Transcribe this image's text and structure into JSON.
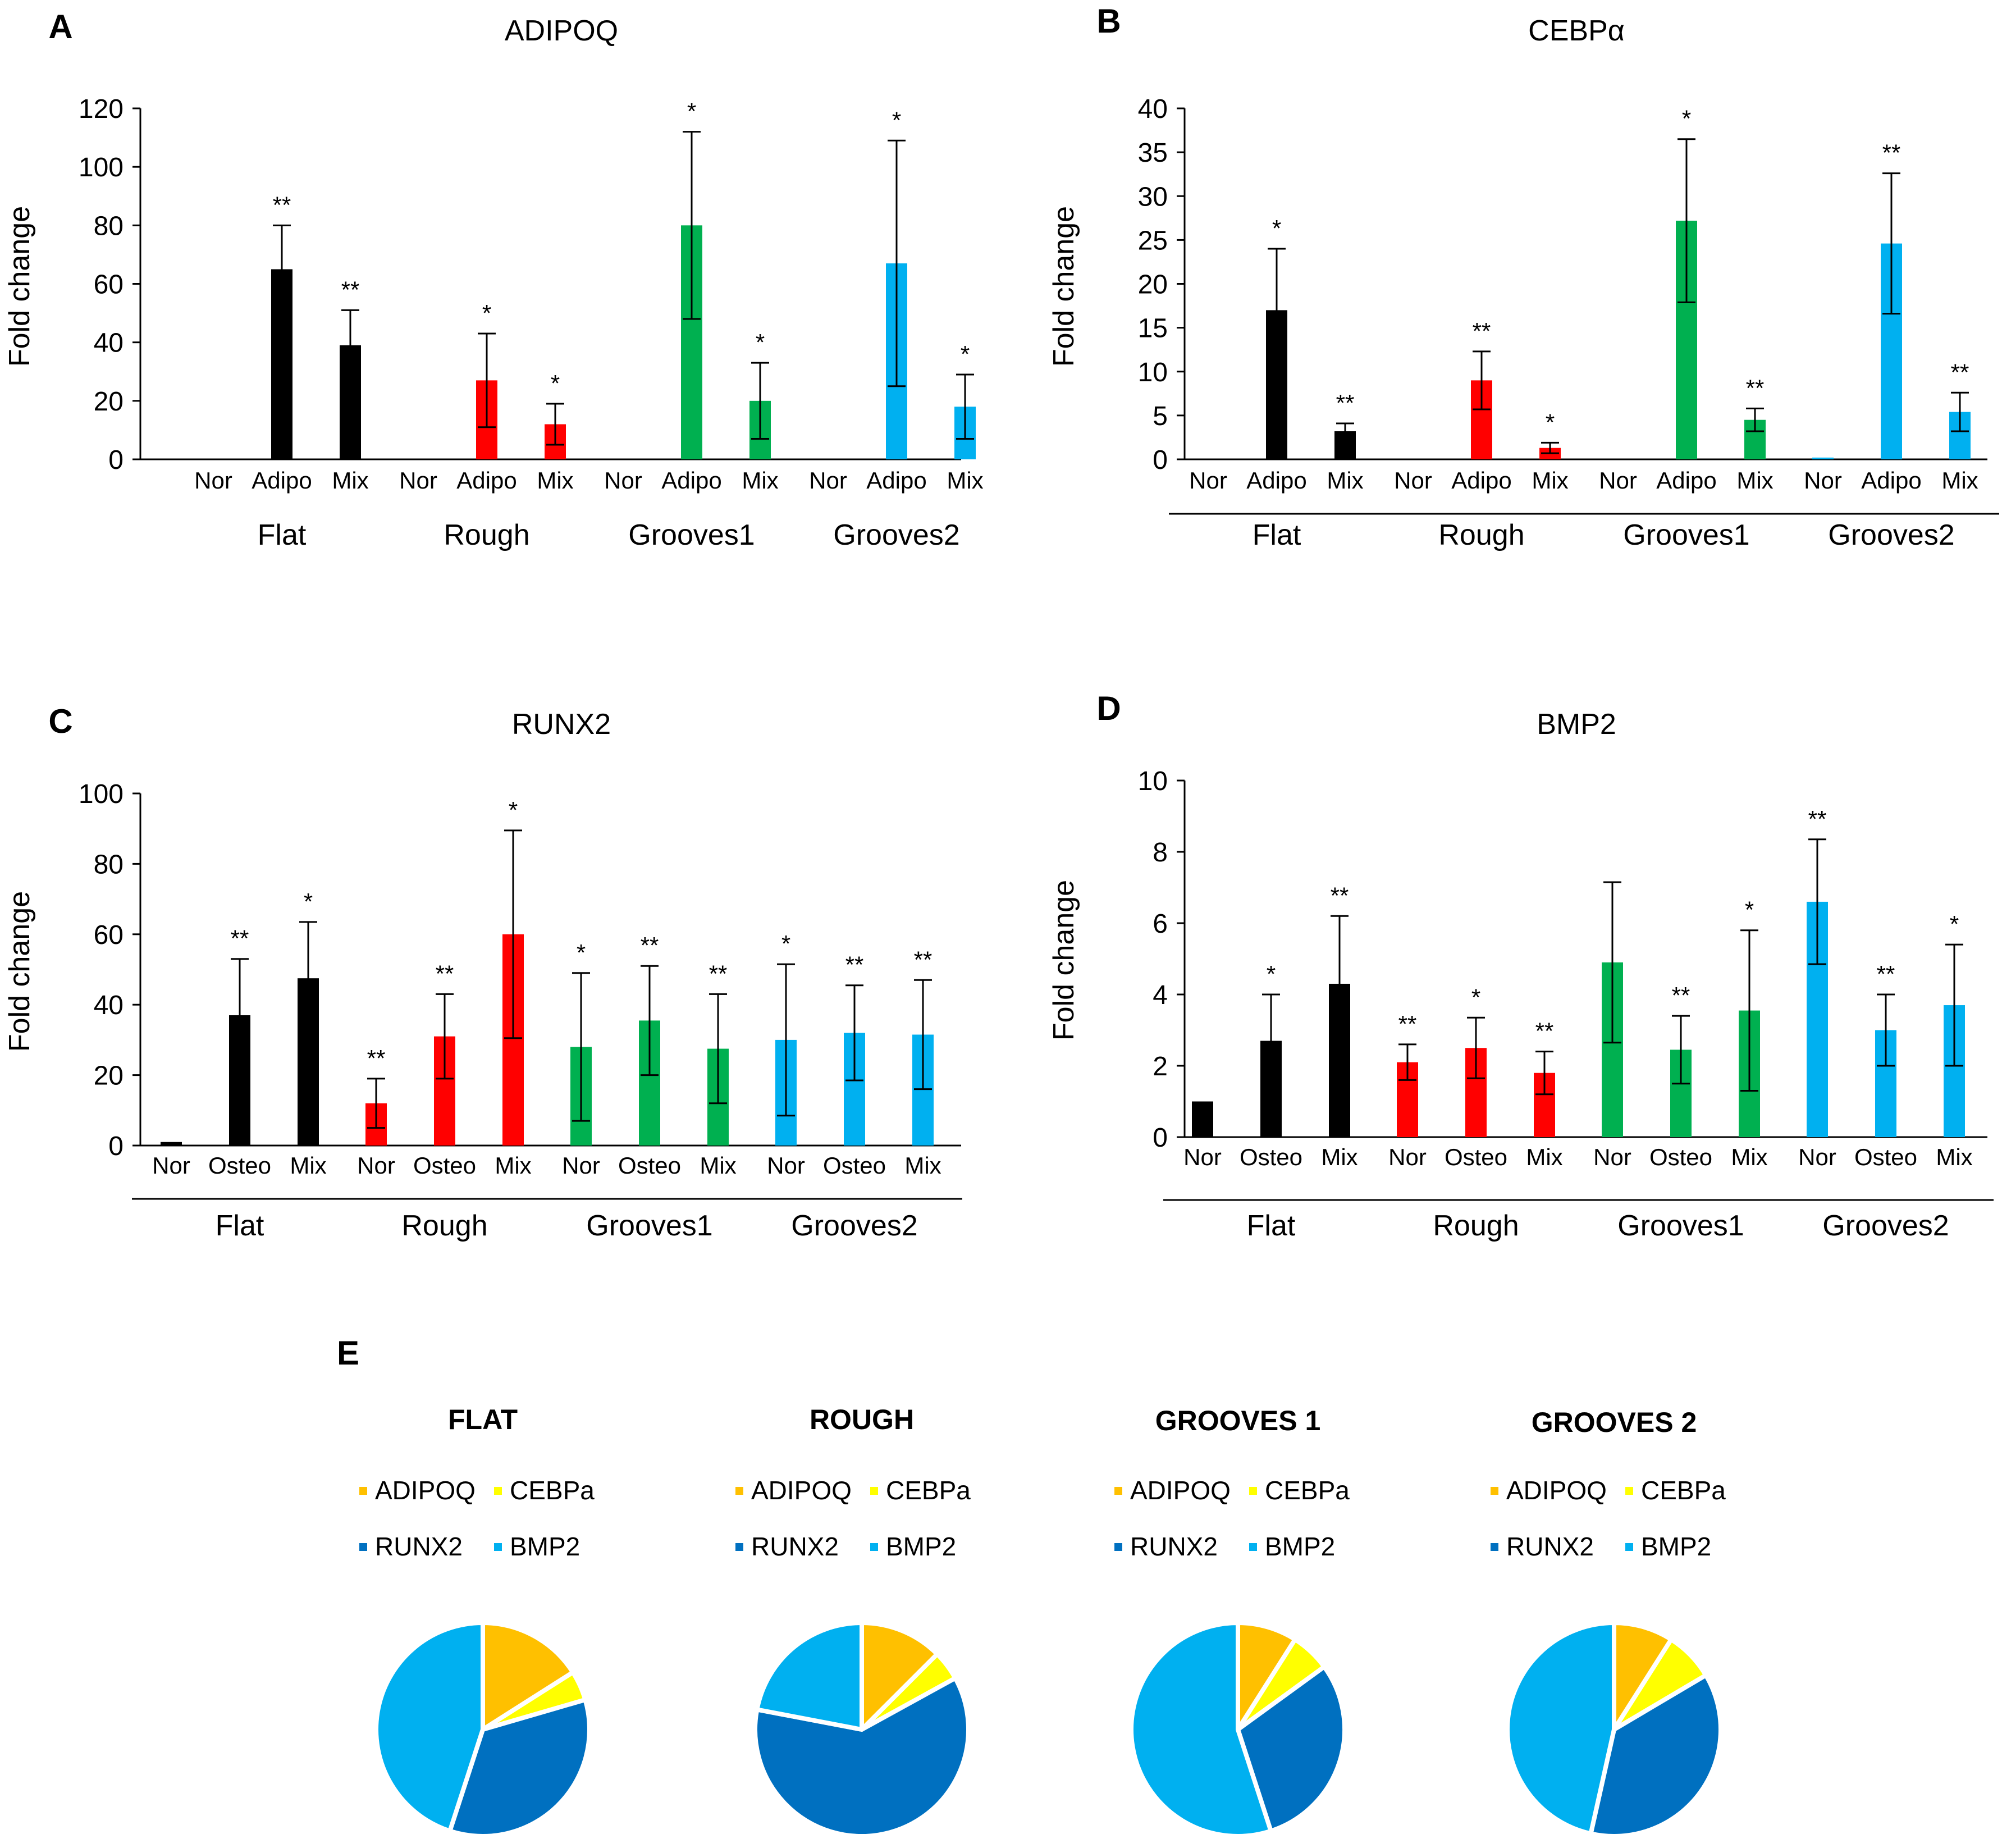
{
  "figure": {
    "background": "#ffffff"
  },
  "colors": {
    "Flat": "#000000",
    "Rough": "#ff0000",
    "Grooves1": "#00b050",
    "Grooves2": "#00b0f0",
    "ADIPOQ": "#ffc000",
    "CEBPa": "#ffff00",
    "RUNX2": "#0070c0",
    "BMP2": "#00b0f0"
  },
  "chart_data": [
    {
      "panel": "A",
      "type": "bar",
      "title": "ADIPOQ",
      "ylabel": "Fold change",
      "ylim": [
        0,
        120
      ],
      "yticks": [
        0,
        20,
        40,
        60,
        80,
        100,
        120
      ],
      "group_underlines": false,
      "groups": [
        {
          "name": "Flat",
          "bars": [
            {
              "label": "Nor",
              "value": 0,
              "err": 0,
              "sig": ""
            },
            {
              "label": "Adipo",
              "value": 65,
              "err": 15,
              "sig": "**"
            },
            {
              "label": "Mix",
              "value": 39,
              "err": 12,
              "sig": "**"
            }
          ]
        },
        {
          "name": "Rough",
          "bars": [
            {
              "label": "Nor",
              "value": 0,
              "err": 0,
              "sig": ""
            },
            {
              "label": "Adipo",
              "value": 27,
              "err": 16,
              "sig": "*"
            },
            {
              "label": "Mix",
              "value": 12,
              "err": 7,
              "sig": "*"
            }
          ]
        },
        {
          "name": "Grooves1",
          "bars": [
            {
              "label": "Nor",
              "value": 0,
              "err": 0,
              "sig": ""
            },
            {
              "label": "Adipo",
              "value": 80,
              "err": 32,
              "sig": "*"
            },
            {
              "label": "Mix",
              "value": 20,
              "err": 13,
              "sig": "*"
            }
          ]
        },
        {
          "name": "Grooves2",
          "bars": [
            {
              "label": "Nor",
              "value": 0,
              "err": 0,
              "sig": ""
            },
            {
              "label": "Adipo",
              "value": 67,
              "err": 42,
              "sig": "*"
            },
            {
              "label": "Mix",
              "value": 18,
              "err": 11,
              "sig": "*"
            }
          ]
        }
      ]
    },
    {
      "panel": "B",
      "type": "bar",
      "title": "CEBPα",
      "ylabel": "Fold change",
      "ylim": [
        0,
        40
      ],
      "yticks": [
        0,
        5,
        10,
        15,
        20,
        25,
        30,
        35,
        40
      ],
      "group_underlines": true,
      "groups": [
        {
          "name": "Flat",
          "bars": [
            {
              "label": "Nor",
              "value": 0,
              "err": 0,
              "sig": ""
            },
            {
              "label": "Adipo",
              "value": 17,
              "err": 7,
              "sig": "*"
            },
            {
              "label": "Mix",
              "value": 3.2,
              "err": 0.9,
              "sig": "**"
            }
          ]
        },
        {
          "name": "Rough",
          "bars": [
            {
              "label": "Nor",
              "value": 0,
              "err": 0,
              "sig": ""
            },
            {
              "label": "Adipo",
              "value": 9,
              "err": 3.3,
              "sig": "**"
            },
            {
              "label": "Mix",
              "value": 1.3,
              "err": 0.6,
              "sig": "*"
            }
          ]
        },
        {
          "name": "Grooves1",
          "bars": [
            {
              "label": "Nor",
              "value": 0,
              "err": 0,
              "sig": ""
            },
            {
              "label": "Adipo",
              "value": 27.2,
              "err": 9.3,
              "sig": "*"
            },
            {
              "label": "Mix",
              "value": 4.5,
              "err": 1.3,
              "sig": "**"
            }
          ]
        },
        {
          "name": "Grooves2",
          "bars": [
            {
              "label": "Nor",
              "value": 0.2,
              "err": 0,
              "sig": ""
            },
            {
              "label": "Adipo",
              "value": 24.6,
              "err": 8,
              "sig": "**"
            },
            {
              "label": "Mix",
              "value": 5.4,
              "err": 2.2,
              "sig": "**"
            }
          ]
        }
      ]
    },
    {
      "panel": "C",
      "type": "bar",
      "title": "RUNX2",
      "ylabel": "Fold change",
      "ylim": [
        0,
        100
      ],
      "yticks": [
        0,
        20,
        40,
        60,
        80,
        100
      ],
      "group_underlines": true,
      "groups": [
        {
          "name": "Flat",
          "bars": [
            {
              "label": "Nor",
              "value": 1,
              "err": 0,
              "sig": ""
            },
            {
              "label": "Osteo",
              "value": 37,
              "err": 16,
              "sig": "**"
            },
            {
              "label": "Mix",
              "value": 47.5,
              "err": 16,
              "sig": "*"
            }
          ]
        },
        {
          "name": "Rough",
          "bars": [
            {
              "label": "Nor",
              "value": 12,
              "err": 7,
              "sig": "**"
            },
            {
              "label": "Osteo",
              "value": 31,
              "err": 12,
              "sig": "**"
            },
            {
              "label": "Mix",
              "value": 60,
              "err": 29.5,
              "sig": "*"
            }
          ]
        },
        {
          "name": "Grooves1",
          "bars": [
            {
              "label": "Nor",
              "value": 28,
              "err": 21,
              "sig": "*"
            },
            {
              "label": "Osteo",
              "value": 35.5,
              "err": 15.5,
              "sig": "**"
            },
            {
              "label": "Mix",
              "value": 27.5,
              "err": 15.5,
              "sig": "**"
            }
          ]
        },
        {
          "name": "Grooves2",
          "bars": [
            {
              "label": "Nor",
              "value": 30,
              "err": 21.5,
              "sig": "*"
            },
            {
              "label": "Osteo",
              "value": 32,
              "err": 13.5,
              "sig": "**"
            },
            {
              "label": "Mix",
              "value": 31.5,
              "err": 15.5,
              "sig": "**"
            }
          ]
        }
      ]
    },
    {
      "panel": "D",
      "type": "bar",
      "title": "BMP2",
      "ylabel": "Fold change",
      "ylim": [
        0,
        10
      ],
      "yticks": [
        0,
        2,
        4,
        6,
        8,
        10
      ],
      "group_underlines": true,
      "groups": [
        {
          "name": "Flat",
          "bars": [
            {
              "label": "Nor",
              "value": 1,
              "err": 0,
              "sig": ""
            },
            {
              "label": "Osteo",
              "value": 2.7,
              "err": 1.3,
              "sig": "*"
            },
            {
              "label": "Mix",
              "value": 4.3,
              "err": 1.9,
              "sig": "**"
            }
          ]
        },
        {
          "name": "Rough",
          "bars": [
            {
              "label": "Nor",
              "value": 2.1,
              "err": 0.5,
              "sig": "**"
            },
            {
              "label": "Osteo",
              "value": 2.5,
              "err": 0.85,
              "sig": "*"
            },
            {
              "label": "Mix",
              "value": 1.8,
              "err": 0.6,
              "sig": "**"
            }
          ]
        },
        {
          "name": "Grooves1",
          "bars": [
            {
              "label": "Nor",
              "value": 4.9,
              "err": 2.25,
              "sig": ""
            },
            {
              "label": "Osteo",
              "value": 2.45,
              "err": 0.95,
              "sig": "**"
            },
            {
              "label": "Mix",
              "value": 3.55,
              "err": 2.25,
              "sig": "*"
            }
          ]
        },
        {
          "name": "Grooves2",
          "bars": [
            {
              "label": "Nor",
              "value": 6.6,
              "err": 1.75,
              "sig": "**"
            },
            {
              "label": "Osteo",
              "value": 3,
              "err": 1,
              "sig": "**"
            },
            {
              "label": "Mix",
              "value": 3.7,
              "err": 1.7,
              "sig": "*"
            }
          ]
        }
      ]
    },
    {
      "panel": "E",
      "type": "pie",
      "legend_rows": [
        [
          "ADIPOQ",
          "CEBPa"
        ],
        [
          "RUNX2",
          "BMP2"
        ]
      ],
      "pies": [
        {
          "title": "FLAT",
          "slices": [
            {
              "label": "ADIPOQ",
              "value": 16
            },
            {
              "label": "CEBPa",
              "value": 4.5
            },
            {
              "label": "RUNX2",
              "value": 34.5
            },
            {
              "label": "BMP2",
              "value": 45
            }
          ]
        },
        {
          "title": "ROUGH",
          "slices": [
            {
              "label": "ADIPOQ",
              "value": 12.5
            },
            {
              "label": "CEBPa",
              "value": 4.5
            },
            {
              "label": "RUNX2",
              "value": 61
            },
            {
              "label": "BMP2",
              "value": 22
            }
          ]
        },
        {
          "title": "GROOVES 1",
          "slices": [
            {
              "label": "ADIPOQ",
              "value": 9
            },
            {
              "label": "CEBPa",
              "value": 6
            },
            {
              "label": "RUNX2",
              "value": 30
            },
            {
              "label": "BMP2",
              "value": 55
            }
          ]
        },
        {
          "title": "GROOVES 2",
          "slices": [
            {
              "label": "ADIPOQ",
              "value": 9
            },
            {
              "label": "CEBPa",
              "value": 7.5
            },
            {
              "label": "RUNX2",
              "value": 37
            },
            {
              "label": "BMP2",
              "value": 46.5
            }
          ]
        }
      ]
    }
  ]
}
